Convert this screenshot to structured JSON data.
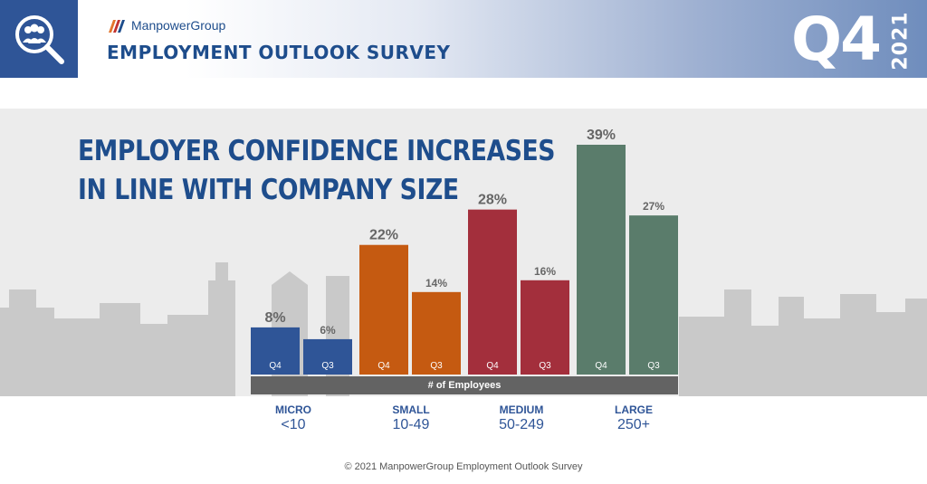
{
  "header": {
    "brand": "ManpowerGroup",
    "survey_title": "EMPLOYMENT OUTLOOK SURVEY",
    "quarter": "Q4",
    "year": "2021"
  },
  "headline": {
    "line1": "EMPLOYER CONFIDENCE INCREASES",
    "line2": "IN LINE WITH COMPANY SIZE"
  },
  "chart_data": {
    "type": "bar",
    "title": "EMPLOYER CONFIDENCE INCREASES IN LINE WITH COMPANY SIZE",
    "xlabel": "# of Employees",
    "ylabel": "",
    "ylim": [
      0,
      39
    ],
    "groups": [
      {
        "name": "MICRO",
        "range": "<10",
        "color": "#2f5597",
        "bars": [
          {
            "label": "Q4",
            "value": 8,
            "display": "8%"
          },
          {
            "label": "Q3",
            "value": 6,
            "display": "6%"
          }
        ]
      },
      {
        "name": "SMALL",
        "range": "10-49",
        "color": "#c55a11",
        "bars": [
          {
            "label": "Q4",
            "value": 22,
            "display": "22%"
          },
          {
            "label": "Q3",
            "value": 14,
            "display": "14%"
          }
        ]
      },
      {
        "name": "MEDIUM",
        "range": "50-249",
        "color": "#a32f3c",
        "bars": [
          {
            "label": "Q4",
            "value": 28,
            "display": "28%"
          },
          {
            "label": "Q3",
            "value": 16,
            "display": "16%"
          }
        ]
      },
      {
        "name": "LARGE",
        "range": "250+",
        "color": "#5a7c6b",
        "bars": [
          {
            "label": "Q4",
            "value": 39,
            "display": "39%"
          },
          {
            "label": "Q3",
            "value": 27,
            "display": "27%"
          }
        ]
      }
    ],
    "value_label_color": "#666666",
    "grid": false
  },
  "footer": "© 2021 ManpowerGroup Employment Outlook Survey"
}
